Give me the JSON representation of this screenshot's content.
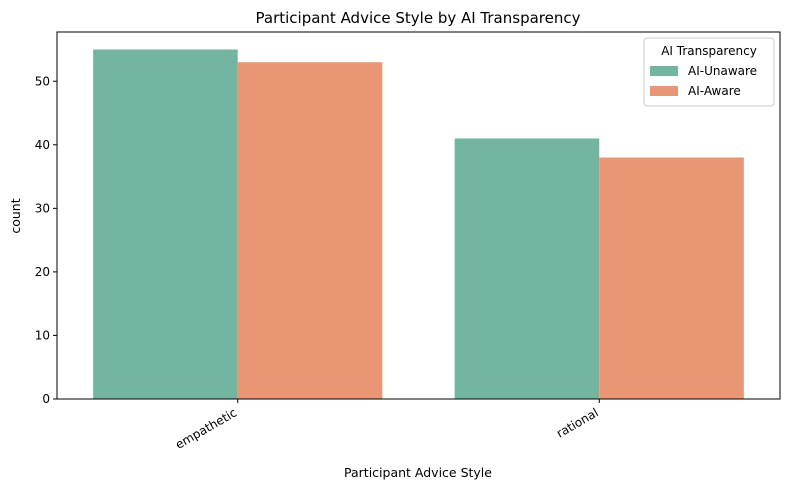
{
  "chart_data": {
    "type": "bar",
    "title": "Participant Advice Style by AI Transparency",
    "xlabel": "Participant Advice Style",
    "ylabel": "count",
    "categories": [
      "empathetic",
      "rational"
    ],
    "series": [
      {
        "name": "AI-Unaware",
        "values": [
          55,
          41
        ],
        "color": "#73b5a0"
      },
      {
        "name": "AI-Aware",
        "values": [
          53,
          38
        ],
        "color": "#e89673"
      }
    ],
    "ylim": [
      0,
      57.75
    ],
    "yticks": [
      0,
      10,
      20,
      30,
      40,
      50
    ],
    "grid": false,
    "legend": {
      "title": "AI Transparency",
      "position": "top-right"
    }
  }
}
